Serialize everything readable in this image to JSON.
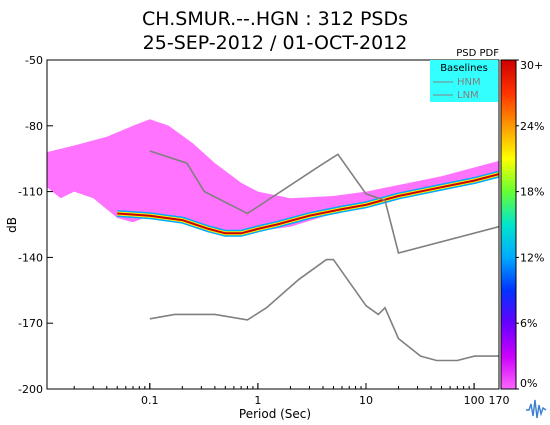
{
  "chart_data": {
    "type": "heatmap",
    "title": "CH.SMUR.--.HGN : 312 PSDs",
    "subtitle": "25-SEP-2012 / 01-OCT-2012",
    "xlabel": "Period (Sec)",
    "ylabel": "dB",
    "x_scale": "log",
    "xlim": [
      0.0112,
      170
    ],
    "ylim": [
      -200,
      -50
    ],
    "x_ticks": [
      {
        "value": 0.1,
        "label": "0.1"
      },
      {
        "value": 1,
        "label": "1"
      },
      {
        "value": 10,
        "label": "10"
      },
      {
        "value": 100,
        "label": "100"
      },
      {
        "value": 170,
        "label": "170"
      }
    ],
    "y_ticks": [
      {
        "value": -50,
        "label": "-50"
      },
      {
        "value": -80,
        "label": "-80"
      },
      {
        "value": -110,
        "label": "-110"
      },
      {
        "value": -140,
        "label": "-140"
      },
      {
        "value": -170,
        "label": "-170"
      },
      {
        "value": -200,
        "label": "-200"
      }
    ],
    "colorbar": {
      "label": "PSD PDF",
      "ticks": [
        "30+",
        "24%",
        "18%",
        "12%",
        "6%",
        "0%"
      ],
      "colors": [
        "#cc0000",
        "#ff3300",
        "#ff9900",
        "#ffff00",
        "#66ff33",
        "#00e5cc",
        "#00aaff",
        "#0033ff",
        "#6600ff",
        "#cc00ff",
        "#ff66ff"
      ]
    },
    "legend": {
      "title": "Baselines",
      "placement": "top-right",
      "entries": [
        "HNM",
        "LNM"
      ]
    },
    "series": [
      {
        "name": "HNM",
        "color": "#808080",
        "points": [
          [
            0.1,
            -91.5
          ],
          [
            0.22,
            -97
          ],
          [
            0.32,
            -110
          ],
          [
            0.8,
            -120
          ],
          [
            3.8,
            -98
          ],
          [
            5.5,
            -93
          ],
          [
            10,
            -111
          ],
          [
            15,
            -114
          ],
          [
            20,
            -138
          ],
          [
            170,
            -126
          ]
        ]
      },
      {
        "name": "LNM",
        "color": "#808080",
        "points": [
          [
            0.1,
            -168
          ],
          [
            0.17,
            -166
          ],
          [
            0.4,
            -166
          ],
          [
            0.8,
            -168.5
          ],
          [
            1.2,
            -163
          ],
          [
            2.4,
            -150
          ],
          [
            4.3,
            -141
          ],
          [
            5,
            -141
          ],
          [
            10,
            -162
          ],
          [
            13,
            -166
          ],
          [
            15,
            -163
          ],
          [
            20,
            -177
          ],
          [
            32,
            -185
          ],
          [
            45,
            -187
          ],
          [
            70,
            -187
          ],
          [
            101,
            -185
          ],
          [
            170,
            -185
          ]
        ]
      }
    ],
    "pdf_bands": [
      {
        "probability": "low",
        "color": "#ff00ff",
        "points": [
          [
            0.0112,
            -108
          ],
          [
            0.015,
            -113
          ],
          [
            0.02,
            -110
          ],
          [
            0.03,
            -113
          ],
          [
            0.05,
            -122
          ],
          [
            0.07,
            -124
          ],
          [
            0.1,
            -121
          ],
          [
            0.2,
            -123
          ],
          [
            0.4,
            -127
          ],
          [
            0.7,
            -130
          ],
          [
            1,
            -128
          ],
          [
            2,
            -126
          ],
          [
            5,
            -120
          ],
          [
            10,
            -115
          ],
          [
            20,
            -112
          ],
          [
            50,
            -108
          ],
          [
            100,
            -104
          ],
          [
            170,
            -101
          ]
        ],
        "upper": [
          [
            0.0112,
            -92
          ],
          [
            0.02,
            -89
          ],
          [
            0.04,
            -85
          ],
          [
            0.07,
            -80
          ],
          [
            0.1,
            -77
          ],
          [
            0.15,
            -80
          ],
          [
            0.25,
            -88
          ],
          [
            0.4,
            -97
          ],
          [
            0.7,
            -106
          ],
          [
            1,
            -110
          ],
          [
            2,
            -113
          ],
          [
            5,
            -112
          ],
          [
            10,
            -110
          ],
          [
            20,
            -107
          ],
          [
            50,
            -103
          ],
          [
            100,
            -99
          ],
          [
            170,
            -96
          ]
        ]
      },
      {
        "probability": "high",
        "color": "#cc0000",
        "points": [
          [
            0.05,
            -120
          ],
          [
            0.1,
            -121
          ],
          [
            0.2,
            -123
          ],
          [
            0.35,
            -127
          ],
          [
            0.5,
            -129
          ],
          [
            0.7,
            -129
          ],
          [
            1,
            -127
          ],
          [
            1.5,
            -125
          ],
          [
            3,
            -121
          ],
          [
            6,
            -118
          ],
          [
            10,
            -116
          ],
          [
            20,
            -112
          ],
          [
            50,
            -108
          ],
          [
            100,
            -105
          ],
          [
            170,
            -102
          ]
        ]
      }
    ]
  }
}
